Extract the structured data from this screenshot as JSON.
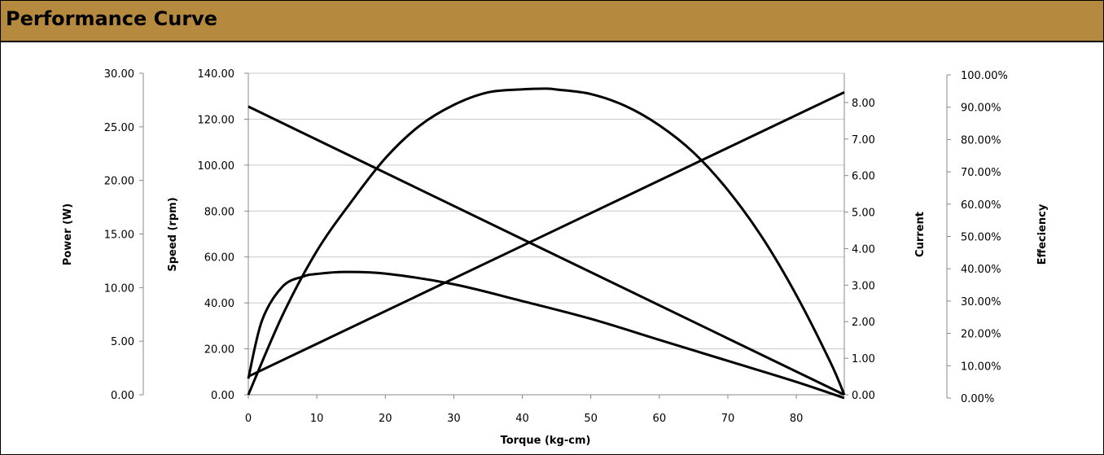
{
  "header": {
    "title": "Performance Curve"
  },
  "chart_data": {
    "type": "line",
    "title": "",
    "xlabel": "Torque (kg-cm)",
    "xlim": [
      0,
      87
    ],
    "x_ticks": [
      0,
      10,
      20,
      30,
      40,
      50,
      60,
      70,
      80
    ],
    "x_tick_labels": [
      "0",
      "10",
      "20",
      "30",
      "40",
      "50",
      "60",
      "70",
      "80"
    ],
    "grid": "horizontal",
    "legend": "none",
    "line_color": "#000000",
    "axes": {
      "power": {
        "label": "Power (W)",
        "ylim": [
          0,
          30
        ],
        "ticks": [
          0,
          5,
          10,
          15,
          20,
          25,
          30
        ],
        "tick_labels": [
          "0.00",
          "5.00",
          "10.00",
          "15.00",
          "20.00",
          "25.00",
          "30.00"
        ]
      },
      "speed": {
        "label": "Speed (rpm)",
        "ylim": [
          0,
          140
        ],
        "ticks": [
          0,
          20,
          40,
          60,
          80,
          100,
          120,
          140
        ],
        "tick_labels": [
          "0.00",
          "20.00",
          "40.00",
          "60.00",
          "80.00",
          "100.00",
          "120.00",
          "140.00"
        ]
      },
      "current": {
        "label": "Current",
        "ylim": [
          0,
          8.8
        ],
        "ticks": [
          0,
          1,
          2,
          3,
          4,
          5,
          6,
          7,
          8
        ],
        "tick_labels": [
          "0.00",
          "1.00",
          "2.00",
          "3.00",
          "4.00",
          "5.00",
          "6.00",
          "7.00",
          "8.00"
        ]
      },
      "efficiency": {
        "label": "Effeciency",
        "ylim": [
          0,
          1
        ],
        "ticks": [
          0,
          0.1,
          0.2,
          0.3,
          0.4,
          0.5,
          0.6,
          0.7,
          0.8,
          0.9,
          1.0
        ],
        "tick_labels": [
          "0.00%",
          "10.00%",
          "20.00%",
          "30.00%",
          "40.00%",
          "50.00%",
          "60.00%",
          "70.00%",
          "80.00%",
          "90.00%",
          "100.00%"
        ]
      }
    },
    "series": [
      {
        "axis": "speed",
        "x": [
          0,
          87
        ],
        "values": [
          125.5,
          0
        ]
      },
      {
        "axis": "current",
        "x": [
          0,
          87
        ],
        "values": [
          0.5,
          8.28
        ]
      },
      {
        "axis": "power",
        "x": [
          0,
          5,
          10,
          15,
          20,
          25,
          30,
          35,
          40,
          43.5,
          45,
          50,
          55,
          60,
          65,
          70,
          75,
          80,
          85,
          87
        ],
        "values": [
          0,
          7.43,
          13.41,
          17.98,
          22.07,
          25.1,
          27.05,
          28.22,
          28.5,
          28.57,
          28.48,
          28.06,
          26.96,
          25.14,
          22.6,
          19.1,
          14.7,
          9.3,
          3.0,
          0
        ]
      },
      {
        "axis": "efficiency",
        "x": [
          0,
          2,
          5,
          8,
          10,
          14,
          20,
          30,
          40,
          50,
          60,
          70,
          80,
          87
        ],
        "values": [
          0.06,
          0.24,
          0.345,
          0.376,
          0.384,
          0.39,
          0.385,
          0.352,
          0.3,
          0.245,
          0.18,
          0.115,
          0.05,
          0
        ]
      }
    ]
  }
}
